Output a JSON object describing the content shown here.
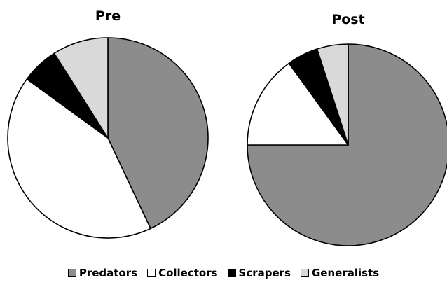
{
  "chart_data": [
    {
      "type": "pie",
      "title": "Pre",
      "categories": [
        "Predators",
        "Collectors",
        "Scrapers",
        "Generalists"
      ],
      "values": [
        43,
        42,
        6,
        9
      ],
      "colors": [
        "#8c8c8c",
        "#ffffff",
        "#000000",
        "#d9d9d9"
      ]
    },
    {
      "type": "pie",
      "title": "Post",
      "categories": [
        "Predators",
        "Collectors",
        "Scrapers",
        "Generalists"
      ],
      "values": [
        75,
        15,
        5,
        5
      ],
      "colors": [
        "#8c8c8c",
        "#ffffff",
        "#000000",
        "#d9d9d9"
      ]
    }
  ],
  "legend": {
    "items": [
      {
        "label": "Predators",
        "color": "#8c8c8c"
      },
      {
        "label": "Collectors",
        "color": "#ffffff"
      },
      {
        "label": "Scrapers",
        "color": "#000000"
      },
      {
        "label": "Generalists",
        "color": "#d9d9d9"
      }
    ],
    "placement": "bottom"
  }
}
